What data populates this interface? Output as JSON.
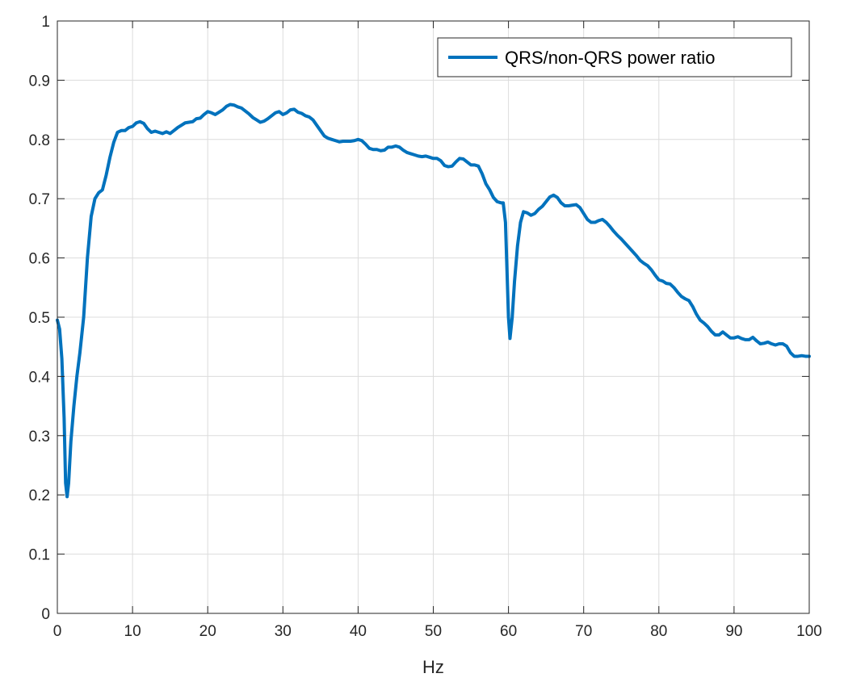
{
  "chart_data": {
    "type": "line",
    "title": "",
    "xlabel": "Hz",
    "ylabel": "",
    "xlim": [
      0,
      100
    ],
    "ylim": [
      0,
      1
    ],
    "xticks": [
      "0",
      "10",
      "20",
      "30",
      "40",
      "50",
      "60",
      "70",
      "80",
      "90",
      "100"
    ],
    "yticks": [
      "0",
      "0.1",
      "0.2",
      "0.3",
      "0.4",
      "0.5",
      "0.6",
      "0.7",
      "0.8",
      "0.9",
      "1"
    ],
    "grid": true,
    "box": true,
    "legend_position": "top-right",
    "series": [
      {
        "name": "QRS/non-QRS power ratio",
        "color": "#0072BD",
        "x": [
          0,
          0.3,
          0.6,
          0.9,
          1.1,
          1.3,
          1.5,
          1.8,
          2.2,
          2.6,
          3.0,
          3.5,
          4.0,
          4.5,
          5.0,
          5.5,
          6.0,
          6.5,
          7.0,
          7.5,
          8.0,
          8.5,
          9.0,
          9.5,
          10.0,
          10.5,
          11.0,
          11.5,
          12.0,
          12.5,
          13.0,
          13.5,
          14.0,
          14.5,
          15.0,
          15.5,
          16.0,
          16.5,
          17.0,
          17.5,
          18.0,
          18.5,
          19.0,
          19.5,
          20.0,
          20.5,
          21.0,
          21.5,
          22.0,
          22.5,
          23.0,
          23.5,
          24.0,
          24.5,
          25.0,
          25.5,
          26.0,
          26.5,
          27.0,
          27.5,
          28.0,
          28.5,
          29.0,
          29.5,
          30.0,
          30.5,
          31.0,
          31.5,
          32.0,
          32.5,
          33.0,
          33.5,
          34.0,
          34.5,
          35.0,
          35.5,
          36.0,
          36.5,
          37.0,
          37.5,
          38.0,
          38.5,
          39.0,
          39.5,
          40.0,
          40.5,
          41.0,
          41.5,
          42.0,
          42.5,
          43.0,
          43.5,
          44.0,
          44.5,
          45.0,
          45.5,
          46.0,
          46.5,
          47.0,
          47.5,
          48.0,
          48.5,
          49.0,
          49.5,
          50.0,
          50.5,
          51.0,
          51.5,
          52.0,
          52.5,
          53.0,
          53.5,
          54.0,
          54.5,
          55.0,
          55.5,
          56.0,
          56.5,
          57.0,
          57.5,
          58.0,
          58.5,
          59.0,
          59.3,
          59.6,
          59.8,
          60.0,
          60.2,
          60.5,
          60.8,
          61.2,
          61.6,
          62.0,
          62.5,
          63.0,
          63.5,
          64.0,
          64.5,
          65.0,
          65.5,
          66.0,
          66.5,
          67.0,
          67.5,
          68.0,
          68.5,
          69.0,
          69.5,
          70.0,
          70.5,
          71.0,
          71.5,
          72.0,
          72.5,
          73.0,
          73.5,
          74.0,
          74.5,
          75.0,
          75.5,
          76.0,
          76.5,
          77.0,
          77.5,
          78.0,
          78.5,
          79.0,
          79.5,
          80.0,
          80.5,
          81.0,
          81.5,
          82.0,
          82.5,
          83.0,
          83.5,
          84.0,
          84.5,
          85.0,
          85.5,
          86.0,
          86.5,
          87.0,
          87.5,
          88.0,
          88.5,
          89.0,
          89.5,
          90.0,
          90.5,
          91.0,
          91.5,
          92.0,
          92.5,
          93.0,
          93.5,
          94.0,
          94.5,
          95.0,
          95.5,
          96.0,
          96.5,
          97.0,
          97.5,
          98.0,
          98.5,
          99.0,
          99.5,
          100.0
        ],
        "y": [
          0.495,
          0.48,
          0.43,
          0.33,
          0.22,
          0.197,
          0.22,
          0.29,
          0.35,
          0.4,
          0.44,
          0.5,
          0.6,
          0.67,
          0.7,
          0.71,
          0.715,
          0.74,
          0.77,
          0.795,
          0.812,
          0.815,
          0.815,
          0.82,
          0.822,
          0.828,
          0.83,
          0.827,
          0.818,
          0.812,
          0.814,
          0.812,
          0.81,
          0.813,
          0.81,
          0.815,
          0.82,
          0.824,
          0.828,
          0.829,
          0.83,
          0.835,
          0.836,
          0.842,
          0.847,
          0.845,
          0.842,
          0.846,
          0.85,
          0.856,
          0.859,
          0.858,
          0.855,
          0.853,
          0.848,
          0.843,
          0.837,
          0.833,
          0.829,
          0.831,
          0.835,
          0.84,
          0.845,
          0.847,
          0.842,
          0.845,
          0.85,
          0.851,
          0.846,
          0.844,
          0.84,
          0.838,
          0.833,
          0.824,
          0.815,
          0.806,
          0.802,
          0.8,
          0.798,
          0.796,
          0.797,
          0.797,
          0.797,
          0.798,
          0.8,
          0.798,
          0.792,
          0.785,
          0.783,
          0.783,
          0.781,
          0.782,
          0.787,
          0.787,
          0.789,
          0.787,
          0.782,
          0.778,
          0.776,
          0.774,
          0.772,
          0.771,
          0.772,
          0.77,
          0.768,
          0.768,
          0.764,
          0.756,
          0.754,
          0.755,
          0.762,
          0.768,
          0.767,
          0.762,
          0.757,
          0.757,
          0.755,
          0.742,
          0.725,
          0.715,
          0.702,
          0.695,
          0.693,
          0.693,
          0.66,
          0.58,
          0.5,
          0.464,
          0.5,
          0.56,
          0.62,
          0.66,
          0.678,
          0.676,
          0.672,
          0.675,
          0.682,
          0.687,
          0.695,
          0.703,
          0.706,
          0.702,
          0.693,
          0.688,
          0.688,
          0.689,
          0.69,
          0.685,
          0.675,
          0.665,
          0.66,
          0.66,
          0.663,
          0.665,
          0.66,
          0.653,
          0.645,
          0.638,
          0.632,
          0.625,
          0.618,
          0.611,
          0.604,
          0.596,
          0.591,
          0.587,
          0.58,
          0.571,
          0.563,
          0.561,
          0.557,
          0.556,
          0.55,
          0.542,
          0.535,
          0.531,
          0.528,
          0.518,
          0.505,
          0.495,
          0.49,
          0.484,
          0.476,
          0.47,
          0.47,
          0.475,
          0.47,
          0.465,
          0.465,
          0.467,
          0.464,
          0.462,
          0.462,
          0.466,
          0.46,
          0.455,
          0.456,
          0.458,
          0.455,
          0.453,
          0.455,
          0.455,
          0.451,
          0.44,
          0.434,
          0.434,
          0.435,
          0.434,
          0.434
        ]
      }
    ]
  }
}
